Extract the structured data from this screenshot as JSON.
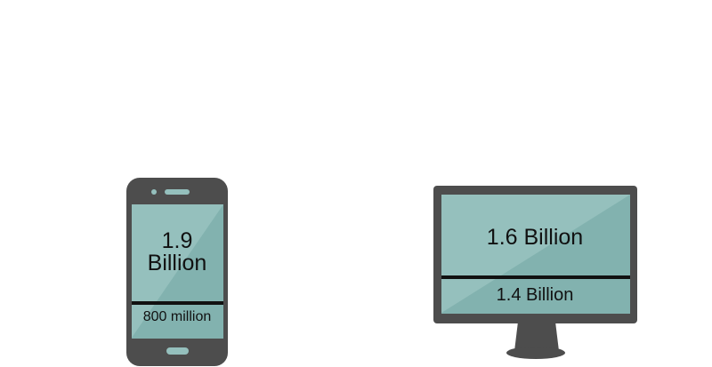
{
  "phone": {
    "upper_value_line1": "1.9",
    "upper_value_line2": "Billion",
    "lower_value": "800 million"
  },
  "desktop": {
    "upper_value": "1.6 Billion",
    "lower_value": "1.4 Billion"
  },
  "colors": {
    "device_body": "#4d4d4d",
    "screen_light": "#95c0bd",
    "screen_dark": "#82b2af",
    "divider": "#111111",
    "background": "#ffffff"
  }
}
